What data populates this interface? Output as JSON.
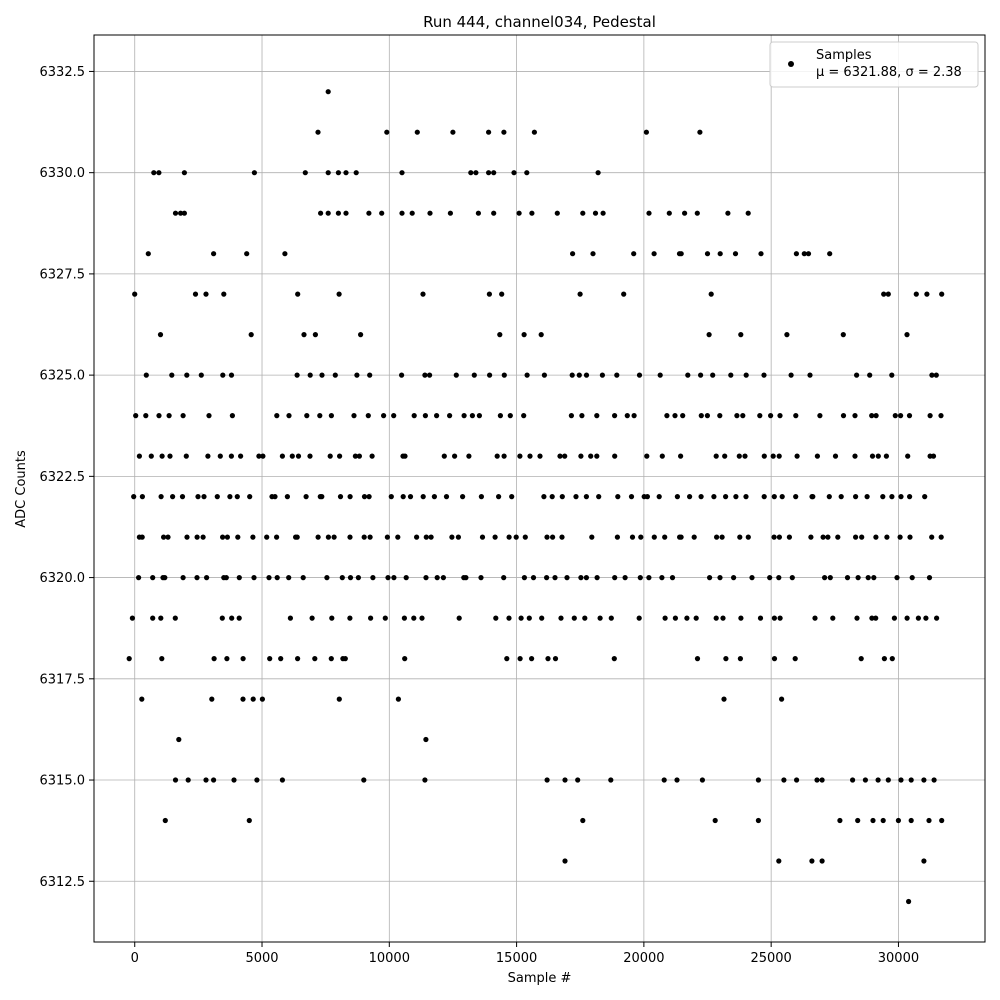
{
  "chart_data": {
    "type": "scatter",
    "title": "Run 444, channel034, Pedestal",
    "xlabel": "Sample #",
    "ylabel": "ADC Counts",
    "xlim": [
      -1600,
      33400
    ],
    "ylim": [
      6311.0,
      6333.4
    ],
    "x_ticks": [
      0,
      5000,
      10000,
      15000,
      20000,
      25000,
      30000
    ],
    "x_tick_labels": [
      "0",
      "5000",
      "10000",
      "15000",
      "20000",
      "25000",
      "30000"
    ],
    "y_ticks": [
      6312.5,
      6315.0,
      6317.5,
      6320.0,
      6322.5,
      6325.0,
      6327.5,
      6330.0,
      6332.5
    ],
    "y_tick_labels": [
      "6312.5",
      "6315.0",
      "6317.5",
      "6320.0",
      "6322.5",
      "6325.0",
      "6327.5",
      "6330.0",
      "6332.5"
    ],
    "grid": true,
    "legend_position": "top-right",
    "series": [
      {
        "name": "Samples",
        "color": "#000000",
        "marker": "dot",
        "stats_label": "μ = 6321.88, σ = 2.38",
        "x_range": [
          0,
          31800
        ],
        "level_densities": [
          {
            "y": 6319,
            "density": 0.7
          },
          {
            "y": 6320,
            "density": 0.9
          },
          {
            "y": 6321,
            "density": 0.97
          },
          {
            "y": 6322,
            "density": 0.95
          },
          {
            "y": 6323,
            "density": 0.88
          },
          {
            "y": 6324,
            "density": 0.72
          },
          {
            "y": 6325,
            "density": 0.55
          },
          {
            "y": 6318,
            "density": 0.35
          },
          {
            "y": 6326,
            "density": 0.25
          },
          {
            "y": 6317,
            "density": 0.12
          },
          {
            "y": 6327,
            "density": 0.09
          },
          {
            "y": 6328,
            "density": 0.03
          },
          {
            "y": 6316,
            "density": 0.04
          }
        ],
        "points": [
          [
            7600,
            6332
          ],
          [
            7200,
            6331
          ],
          [
            9900,
            6331
          ],
          [
            11100,
            6331
          ],
          [
            12500,
            6331
          ],
          [
            13900,
            6331
          ],
          [
            14500,
            6331
          ],
          [
            15700,
            6331
          ],
          [
            20100,
            6331
          ],
          [
            22200,
            6331
          ],
          [
            750,
            6330
          ],
          [
            950,
            6330
          ],
          [
            1950,
            6330
          ],
          [
            4700,
            6330
          ],
          [
            6700,
            6330
          ],
          [
            7600,
            6330
          ],
          [
            8000,
            6330
          ],
          [
            8300,
            6330
          ],
          [
            8700,
            6330
          ],
          [
            10500,
            6330
          ],
          [
            13200,
            6330
          ],
          [
            13400,
            6330
          ],
          [
            13900,
            6330
          ],
          [
            14100,
            6330
          ],
          [
            14900,
            6330
          ],
          [
            15400,
            6330
          ],
          [
            18200,
            6330
          ],
          [
            1600,
            6329
          ],
          [
            1800,
            6329
          ],
          [
            1950,
            6329
          ],
          [
            7300,
            6329
          ],
          [
            7600,
            6329
          ],
          [
            8000,
            6329
          ],
          [
            8300,
            6329
          ],
          [
            9200,
            6329
          ],
          [
            9700,
            6329
          ],
          [
            10500,
            6329
          ],
          [
            10900,
            6329
          ],
          [
            11600,
            6329
          ],
          [
            12400,
            6329
          ],
          [
            13500,
            6329
          ],
          [
            14100,
            6329
          ],
          [
            15100,
            6329
          ],
          [
            15600,
            6329
          ],
          [
            16600,
            6329
          ],
          [
            17600,
            6329
          ],
          [
            18100,
            6329
          ],
          [
            18400,
            6329
          ],
          [
            20200,
            6329
          ],
          [
            21000,
            6329
          ],
          [
            21600,
            6329
          ],
          [
            22100,
            6329
          ],
          [
            23300,
            6329
          ],
          [
            24100,
            6329
          ],
          [
            3100,
            6328
          ],
          [
            4400,
            6328
          ],
          [
            5900,
            6328
          ],
          [
            17200,
            6328
          ],
          [
            18000,
            6328
          ],
          [
            19600,
            6328
          ],
          [
            20400,
            6328
          ],
          [
            21400,
            6328
          ],
          [
            22500,
            6328
          ],
          [
            23000,
            6328
          ],
          [
            23600,
            6328
          ],
          [
            24600,
            6328
          ],
          [
            26300,
            6328
          ],
          [
            27300,
            6328
          ],
          [
            0,
            6327
          ],
          [
            2800,
            6327
          ],
          [
            3500,
            6327
          ],
          [
            6400,
            6327
          ],
          [
            29600,
            6327
          ],
          [
            30700,
            6327
          ],
          [
            31700,
            6327
          ],
          [
            1200,
            6314
          ],
          [
            4500,
            6314
          ],
          [
            17600,
            6314
          ],
          [
            22800,
            6314
          ],
          [
            24500,
            6314
          ],
          [
            27700,
            6314
          ],
          [
            28400,
            6314
          ],
          [
            29000,
            6314
          ],
          [
            29400,
            6314
          ],
          [
            30000,
            6314
          ],
          [
            30500,
            6314
          ],
          [
            31200,
            6314
          ],
          [
            31700,
            6314
          ],
          [
            1600,
            6315
          ],
          [
            2100,
            6315
          ],
          [
            2800,
            6315
          ],
          [
            3100,
            6315
          ],
          [
            3900,
            6315
          ],
          [
            4800,
            6315
          ],
          [
            5800,
            6315
          ],
          [
            9000,
            6315
          ],
          [
            11400,
            6315
          ],
          [
            16200,
            6315
          ],
          [
            16900,
            6315
          ],
          [
            17400,
            6315
          ],
          [
            18700,
            6315
          ],
          [
            20800,
            6315
          ],
          [
            21300,
            6315
          ],
          [
            22300,
            6315
          ],
          [
            24500,
            6315
          ],
          [
            25500,
            6315
          ],
          [
            26000,
            6315
          ],
          [
            26800,
            6315
          ],
          [
            27000,
            6315
          ],
          [
            28200,
            6315
          ],
          [
            28700,
            6315
          ],
          [
            29200,
            6315
          ],
          [
            29600,
            6315
          ],
          [
            30100,
            6315
          ],
          [
            30500,
            6315
          ],
          [
            31000,
            6315
          ],
          [
            31400,
            6315
          ],
          [
            16900,
            6313
          ],
          [
            25300,
            6313
          ],
          [
            26600,
            6313
          ],
          [
            27000,
            6313
          ],
          [
            31000,
            6313
          ],
          [
            30400,
            6312
          ]
        ]
      }
    ]
  }
}
